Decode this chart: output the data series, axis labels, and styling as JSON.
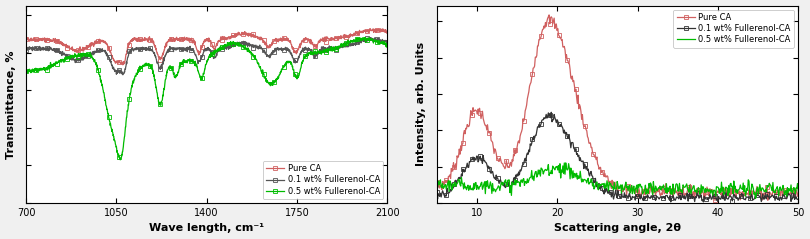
{
  "ftir": {
    "xlim": [
      700,
      2100
    ],
    "xlabel": "Wave length, cm⁻¹",
    "ylabel": "Transmittance, %",
    "legend_labels": [
      "Pure CA",
      "0.1 wt% Fullerenol-CA",
      "0.5 wt% Fullerenol-CA"
    ],
    "colors": [
      "#d06060",
      "#555555",
      "#00bb00"
    ],
    "xticks": [
      700,
      1050,
      1400,
      1750,
      2100
    ]
  },
  "xrd": {
    "xlim": [
      5,
      50
    ],
    "xlabel": "Scattering angle, 2θ",
    "ylabel": "Intensity, arb. Units",
    "legend_labels": [
      "Pure CA",
      "0.1 wt% Fullerenol-CA",
      "0.5 wt% Fullerenol-CA"
    ],
    "colors": [
      "#d06060",
      "#333333",
      "#00bb00"
    ],
    "xticks": [
      10,
      20,
      30,
      40,
      50
    ]
  },
  "fig_width": 8.1,
  "fig_height": 2.39,
  "dpi": 100,
  "background_color": "#f0f0f0"
}
